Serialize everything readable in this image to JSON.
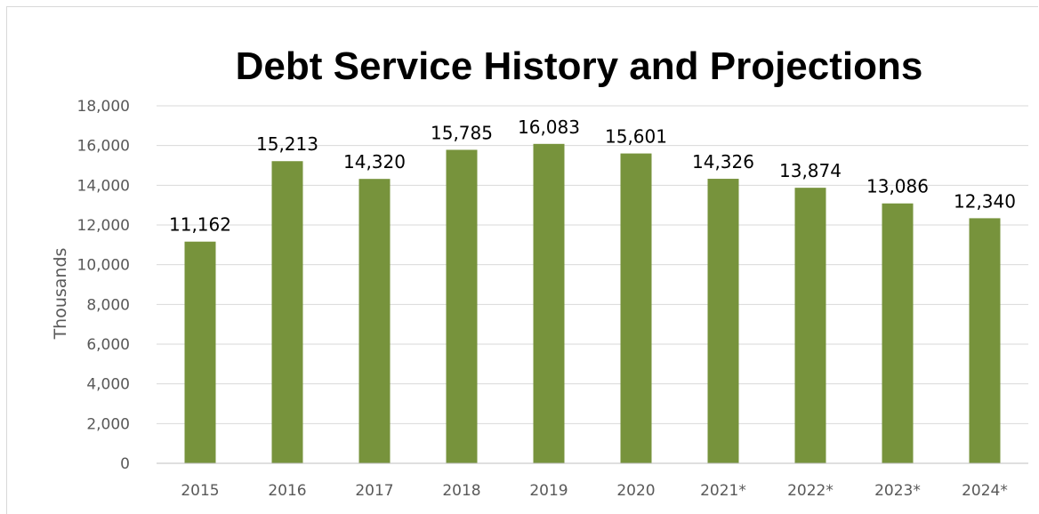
{
  "chart_data": {
    "type": "bar",
    "title": "Debt Service History and Projections",
    "xlabel": "",
    "ylabel": "Thousands",
    "categories": [
      "2015",
      "2016",
      "2017",
      "2018",
      "2019",
      "2020",
      "2021*",
      "2022*",
      "2023*",
      "2024*"
    ],
    "values": [
      11162,
      15213,
      14320,
      15785,
      16083,
      15601,
      14326,
      13874,
      13086,
      12340
    ],
    "data_labels": [
      "11,162",
      "15,213",
      "14,320",
      "15,785",
      "16,083",
      "15,601",
      "14,326",
      "13,874",
      "13,086",
      "12,340"
    ],
    "ylim": [
      0,
      18000
    ],
    "y_ticks": [
      0,
      2000,
      4000,
      6000,
      8000,
      10000,
      12000,
      14000,
      16000,
      18000
    ],
    "y_tick_labels": [
      "0",
      "2,000",
      "4,000",
      "6,000",
      "8,000",
      "10,000",
      "12,000",
      "14,000",
      "16,000",
      "18,000"
    ],
    "grid": true,
    "legend": "none",
    "colors": {
      "bar": "#77933c",
      "grid": "#d9d9d9",
      "axis": "#bfbfbf"
    }
  }
}
